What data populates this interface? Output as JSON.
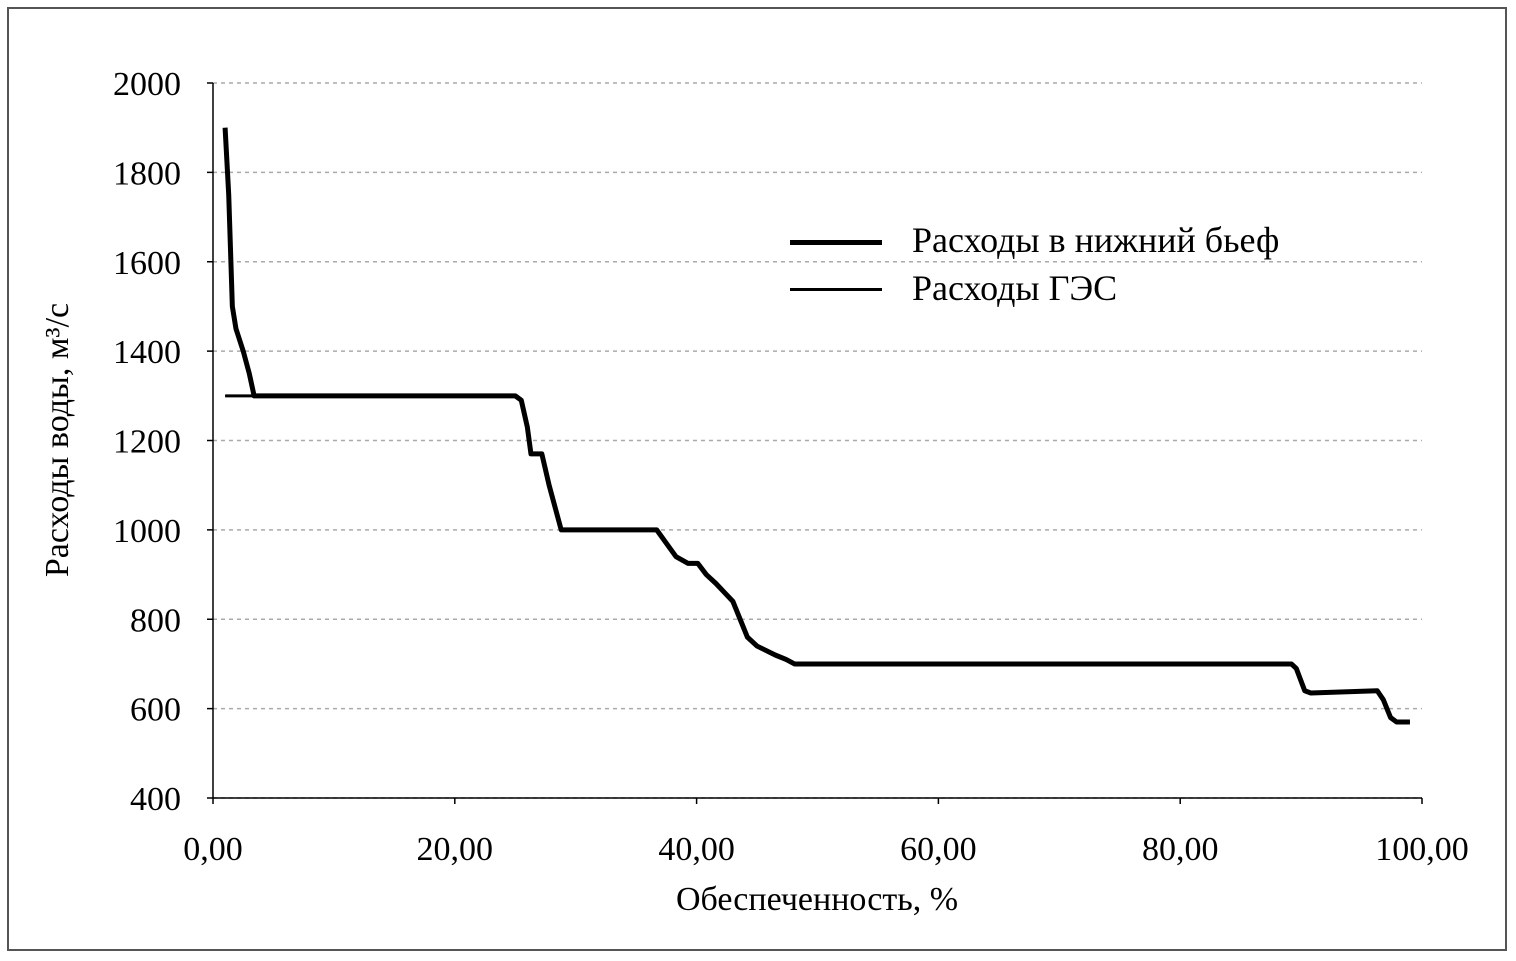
{
  "chart_data": {
    "type": "line",
    "xlabel": "Обеспеченность, %",
    "ylabel": "Расходы воды, м³/с",
    "x": [
      1.0,
      1.3,
      1.6,
      1.9,
      2.5,
      3.0,
      3.4,
      25.0,
      25.5,
      26.0,
      26.3,
      27.2,
      27.8,
      28.4,
      28.8,
      36.7,
      37.5,
      38.3,
      39.3,
      40.1,
      40.8,
      41.6,
      42.3,
      43.0,
      43.6,
      44.2,
      45.0,
      46.5,
      47.4,
      48.1,
      89.2,
      89.6,
      90.3,
      90.8,
      96.3,
      96.8,
      97.4,
      97.9,
      99.0
    ],
    "series": [
      {
        "name": "Расходы в нижний бьеф",
        "color": "#000000",
        "width": 5,
        "values": [
          1900,
          1750,
          1500,
          1450,
          1400,
          1350,
          1300,
          1300,
          1290,
          1230,
          1170,
          1170,
          1100,
          1040,
          1000,
          1000,
          970,
          940,
          925,
          925,
          900,
          880,
          860,
          840,
          800,
          760,
          740,
          720,
          710,
          700,
          700,
          690,
          640,
          635,
          640,
          620,
          580,
          570,
          570
        ]
      },
      {
        "name": "Расходы ГЭС",
        "color": "#000000",
        "width": 3,
        "values": [
          1300,
          1300,
          1300,
          1300,
          1300,
          1300,
          1300,
          1300,
          1290,
          1230,
          1170,
          1170,
          1100,
          1040,
          1000,
          1000,
          970,
          940,
          925,
          925,
          900,
          880,
          860,
          840,
          800,
          760,
          740,
          720,
          710,
          700,
          700,
          690,
          640,
          635,
          640,
          620,
          580,
          570,
          570
        ]
      }
    ],
    "xlim": [
      0,
      100
    ],
    "xticks": [
      {
        "value": 0,
        "label": "0,00"
      },
      {
        "value": 20,
        "label": "20,00"
      },
      {
        "value": 40,
        "label": "40,00"
      },
      {
        "value": 60,
        "label": "60,00"
      },
      {
        "value": 80,
        "label": "80,00"
      },
      {
        "value": 100,
        "label": "100,00"
      }
    ],
    "ylim": [
      400,
      2000
    ],
    "yticks": [
      400,
      600,
      800,
      1000,
      1200,
      1400,
      1600,
      1800,
      2000
    ],
    "grid": true
  }
}
